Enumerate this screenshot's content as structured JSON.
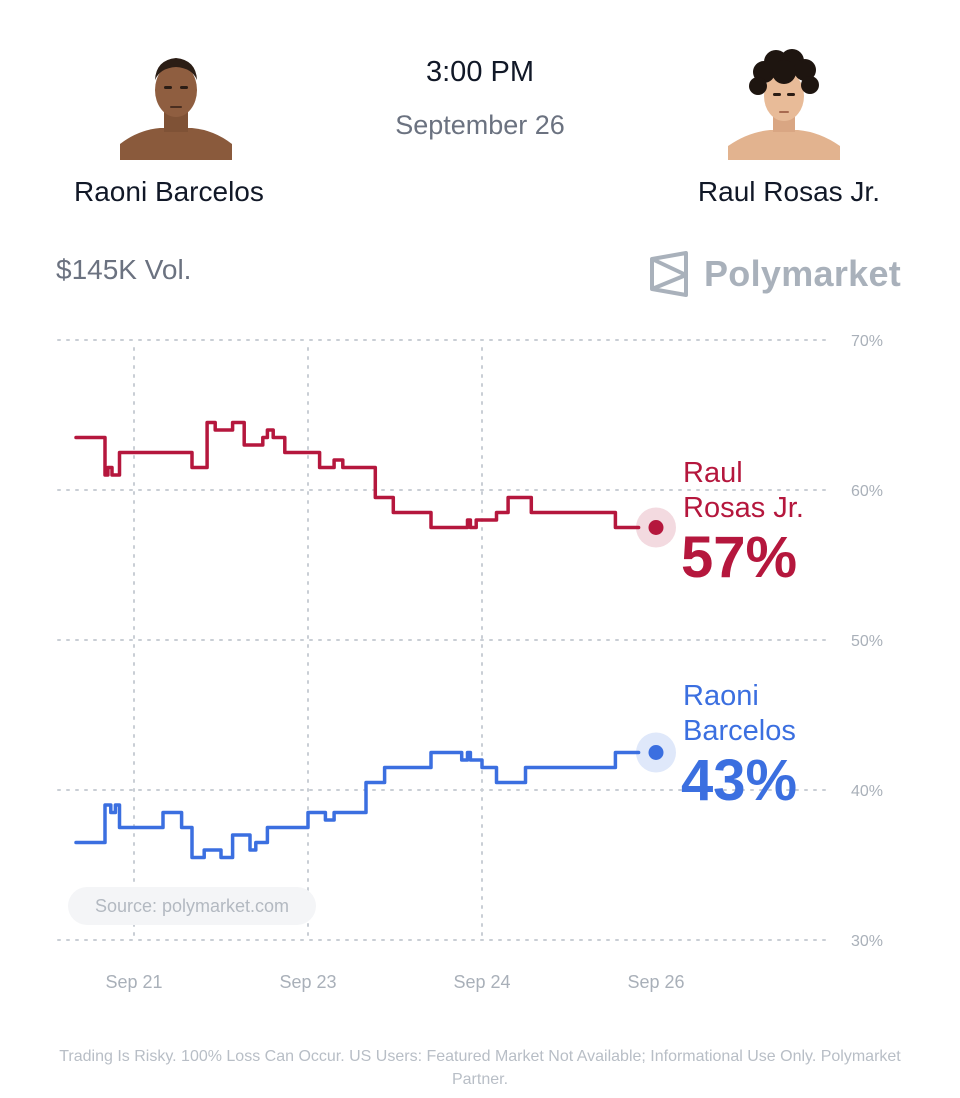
{
  "event": {
    "time": "3:00 PM",
    "date": "September 26"
  },
  "fighters": {
    "left": {
      "name": "Raoni Barcelos"
    },
    "right": {
      "name": "Raul Rosas Jr."
    }
  },
  "volume": "$145K Vol.",
  "brand": {
    "name": "Polymarket",
    "icon": "polymarket-logo-icon"
  },
  "source_label": "Source: polymarket.com",
  "disclaimer": "Trading Is Risky. 100% Loss Can Occur. US Users: Featured Market Not Available; Informational Use Only. Polymarket Partner.",
  "colors": {
    "rosas": "#b5173d",
    "barcelos": "#3b6fe0",
    "grid": "#c9ced5",
    "axis_text": "#a9b0b9"
  },
  "chart_data": {
    "type": "line",
    "ylim": [
      30,
      70
    ],
    "y_ticks": [
      {
        "value": 70,
        "label": "70%"
      },
      {
        "value": 60,
        "label": "60%"
      },
      {
        "value": 50,
        "label": "50%"
      },
      {
        "value": 40,
        "label": "40%"
      },
      {
        "value": 30,
        "label": "30%"
      }
    ],
    "x_ticks": [
      {
        "label": "Sep 21",
        "t": 0.1
      },
      {
        "label": "Sep 23",
        "t": 0.4
      },
      {
        "label": "Sep 24",
        "t": 0.7
      },
      {
        "label": "Sep 26",
        "t": 1.0
      }
    ],
    "grid": true,
    "series": [
      {
        "name": "Raul Rosas Jr.",
        "name_line1": "Raul",
        "name_line2": "Rosas Jr.",
        "final_label": "57%",
        "color": "#b5173d",
        "points": [
          [
            0.0,
            63.5
          ],
          [
            0.05,
            63.5
          ],
          [
            0.05,
            61.0
          ],
          [
            0.055,
            61.0
          ],
          [
            0.055,
            61.5
          ],
          [
            0.062,
            61.5
          ],
          [
            0.062,
            61.0
          ],
          [
            0.075,
            61.0
          ],
          [
            0.075,
            62.5
          ],
          [
            0.116,
            62.5
          ],
          [
            0.2,
            62.5
          ],
          [
            0.2,
            61.5
          ],
          [
            0.226,
            61.5
          ],
          [
            0.226,
            64.5
          ],
          [
            0.24,
            64.5
          ],
          [
            0.24,
            64.0
          ],
          [
            0.27,
            64.0
          ],
          [
            0.27,
            64.5
          ],
          [
            0.29,
            64.5
          ],
          [
            0.29,
            63.0
          ],
          [
            0.322,
            63.0
          ],
          [
            0.322,
            63.5
          ],
          [
            0.33,
            63.5
          ],
          [
            0.33,
            64.0
          ],
          [
            0.34,
            64.0
          ],
          [
            0.34,
            63.5
          ],
          [
            0.36,
            63.5
          ],
          [
            0.36,
            62.5
          ],
          [
            0.42,
            62.5
          ],
          [
            0.42,
            61.5
          ],
          [
            0.445,
            61.5
          ],
          [
            0.445,
            62.0
          ],
          [
            0.46,
            62.0
          ],
          [
            0.46,
            61.5
          ],
          [
            0.516,
            61.5
          ],
          [
            0.516,
            59.5
          ],
          [
            0.547,
            59.5
          ],
          [
            0.547,
            58.5
          ],
          [
            0.612,
            58.5
          ],
          [
            0.612,
            57.5
          ],
          [
            0.675,
            57.5
          ],
          [
            0.675,
            58.0
          ],
          [
            0.68,
            58.0
          ],
          [
            0.68,
            57.5
          ],
          [
            0.69,
            57.5
          ],
          [
            0.69,
            58.0
          ],
          [
            0.725,
            58.0
          ],
          [
            0.725,
            58.5
          ],
          [
            0.745,
            58.5
          ],
          [
            0.745,
            59.5
          ],
          [
            0.785,
            59.5
          ],
          [
            0.785,
            58.5
          ],
          [
            0.93,
            58.5
          ],
          [
            0.93,
            57.5
          ],
          [
            0.97,
            57.5
          ]
        ],
        "final": [
          1.0,
          57.5
        ]
      },
      {
        "name": "Raoni Barcelos",
        "name_line1": "Raoni",
        "name_line2": "Barcelos",
        "final_label": "43%",
        "color": "#3b6fe0",
        "points": [
          [
            0.0,
            36.5
          ],
          [
            0.05,
            36.5
          ],
          [
            0.05,
            39.0
          ],
          [
            0.06,
            39.0
          ],
          [
            0.06,
            38.5
          ],
          [
            0.068,
            38.5
          ],
          [
            0.068,
            39.0
          ],
          [
            0.075,
            39.0
          ],
          [
            0.075,
            37.5
          ],
          [
            0.13,
            37.5
          ],
          [
            0.15,
            37.5
          ],
          [
            0.15,
            38.5
          ],
          [
            0.182,
            38.5
          ],
          [
            0.182,
            37.5
          ],
          [
            0.2,
            37.5
          ],
          [
            0.2,
            35.5
          ],
          [
            0.221,
            35.5
          ],
          [
            0.221,
            36.0
          ],
          [
            0.25,
            36.0
          ],
          [
            0.25,
            35.5
          ],
          [
            0.27,
            35.5
          ],
          [
            0.27,
            37.0
          ],
          [
            0.3,
            37.0
          ],
          [
            0.3,
            36.0
          ],
          [
            0.31,
            36.0
          ],
          [
            0.31,
            36.5
          ],
          [
            0.33,
            36.5
          ],
          [
            0.33,
            37.5
          ],
          [
            0.4,
            37.5
          ],
          [
            0.4,
            38.5
          ],
          [
            0.43,
            38.5
          ],
          [
            0.43,
            38.0
          ],
          [
            0.445,
            38.0
          ],
          [
            0.445,
            38.5
          ],
          [
            0.5,
            38.5
          ],
          [
            0.5,
            40.5
          ],
          [
            0.532,
            40.5
          ],
          [
            0.532,
            41.5
          ],
          [
            0.612,
            41.5
          ],
          [
            0.612,
            42.5
          ],
          [
            0.665,
            42.5
          ],
          [
            0.665,
            42.0
          ],
          [
            0.675,
            42.0
          ],
          [
            0.675,
            42.5
          ],
          [
            0.68,
            42.5
          ],
          [
            0.68,
            42.0
          ],
          [
            0.7,
            42.0
          ],
          [
            0.7,
            41.5
          ],
          [
            0.725,
            41.5
          ],
          [
            0.725,
            40.5
          ],
          [
            0.775,
            40.5
          ],
          [
            0.775,
            41.5
          ],
          [
            0.93,
            41.5
          ],
          [
            0.93,
            42.5
          ],
          [
            0.97,
            42.5
          ]
        ],
        "final": [
          1.0,
          42.5
        ]
      }
    ]
  }
}
